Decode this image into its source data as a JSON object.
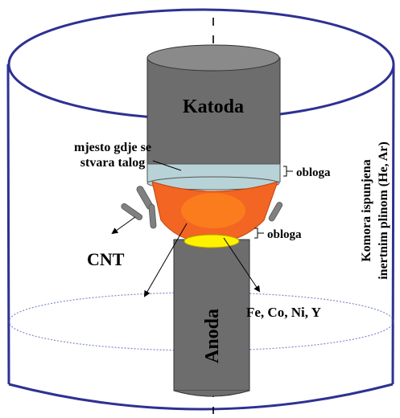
{
  "diagram": {
    "labels": {
      "cathode": "Katoda",
      "anode": "Anoda",
      "deposit_place_line1": "mjesto gdje se",
      "deposit_place_line2": "stvara talog",
      "coating_upper": "obloga",
      "coating_lower": "obloga",
      "cnt": "CNT",
      "catalysts": "Fe, Co, Ni, Y",
      "chamber_line1": "Komora ispunjena",
      "chamber_line2": "inertnim plinom (He, Ar)"
    },
    "colors": {
      "chamber_outline": "#2e3192",
      "electrode_fill": "#6d6d6d",
      "electrode_top": "#8a8a8a",
      "deposit_band": "#b8d3d8",
      "plasma": "#f26522",
      "plasma_core": "#ff8c1a",
      "catalyst_pool": "#fff200",
      "nanotube": "#808080"
    }
  }
}
